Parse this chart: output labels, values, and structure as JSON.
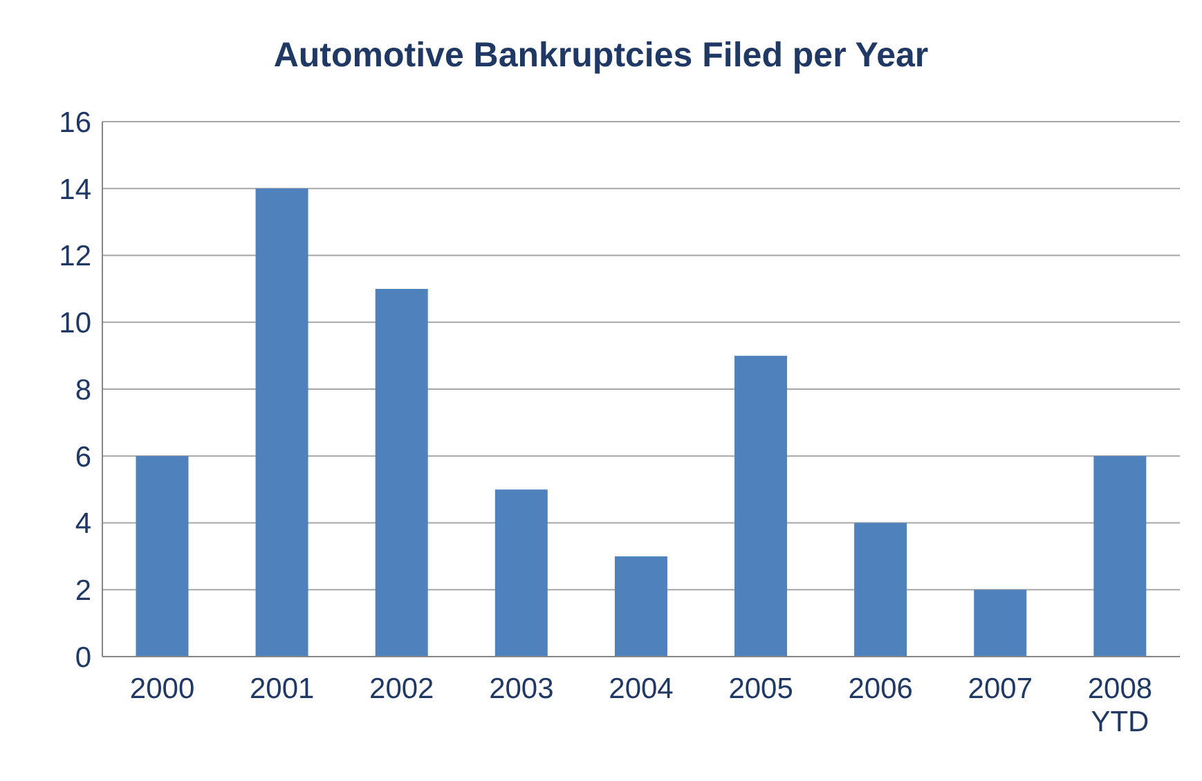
{
  "chart_data": {
    "type": "bar",
    "title": "Automotive Bankruptcies Filed per Year",
    "categories": [
      "2000",
      "2001",
      "2002",
      "2003",
      "2004",
      "2005",
      "2006",
      "2007",
      "2008 YTD"
    ],
    "values": [
      6,
      14,
      11,
      5,
      3,
      9,
      4,
      2,
      6
    ],
    "color": "#4f81bd",
    "ylim": [
      0,
      16
    ],
    "yticks": [
      0,
      2,
      4,
      6,
      8,
      10,
      12,
      14,
      16
    ],
    "grid": "y"
  }
}
